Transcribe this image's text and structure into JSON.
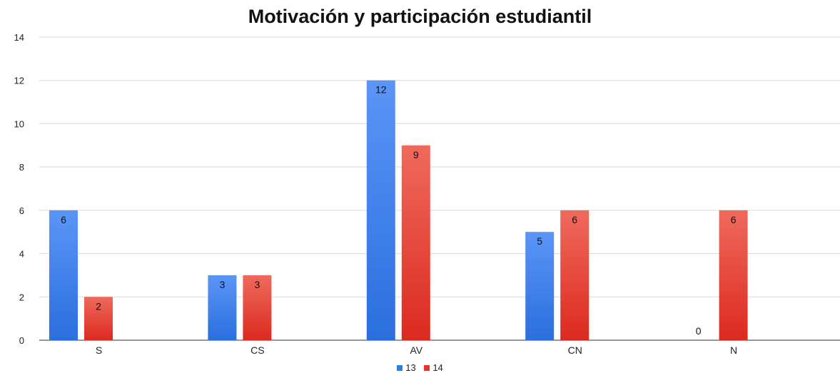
{
  "chart_data": {
    "type": "bar",
    "title": "Motivación y participación estudiantil",
    "categories": [
      "S",
      "CS",
      "AV",
      "CN",
      "N"
    ],
    "series": [
      {
        "name": "13",
        "values": [
          6,
          3,
          12,
          5,
          0
        ],
        "color": "#2f7bf0"
      },
      {
        "name": "14",
        "values": [
          2,
          3,
          9,
          6,
          6
        ],
        "color": "#e8322a"
      }
    ],
    "ylim": [
      0,
      14
    ],
    "yticks": [
      "0",
      "2",
      "4",
      "6",
      "8",
      "10",
      "12",
      "14"
    ],
    "grid": true,
    "legend_position": "bottom",
    "data_labels": true
  }
}
